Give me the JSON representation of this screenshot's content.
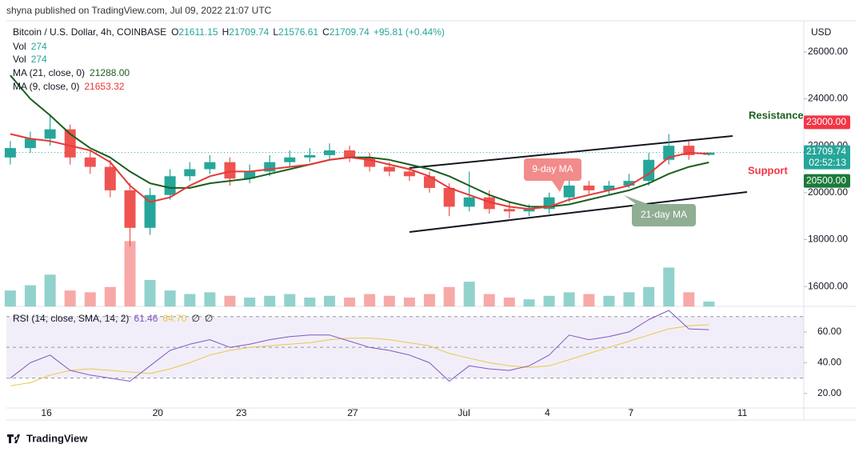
{
  "publisher": "shyna published on TradingView.com, Jul 09, 2022 21:07 UTC",
  "footer": "TradingView",
  "chart_data": {
    "type": "candlestick",
    "symbol": "Bitcoin / U.S. Dollar, 4h, COINBASE",
    "ohlc_prefixes": [
      "O",
      "H",
      "L",
      "C"
    ],
    "change": "+95.81",
    "change_pct": "(+0.44%)",
    "currency": "USD",
    "countdown": "02:52:13",
    "x": [
      -1.3,
      -0.58,
      0.13,
      0.85,
      1.57,
      2.29,
      3.0,
      3.72,
      4.44,
      5.15,
      5.87,
      6.59,
      7.3,
      8.02,
      8.74,
      9.46,
      10.17,
      10.89,
      11.61,
      12.32,
      13.04,
      13.76,
      14.47,
      15.19,
      15.91,
      16.63,
      17.34,
      18.06,
      18.78,
      19.49,
      20.21,
      20.93,
      21.64,
      22.36,
      23.08,
      23.8
    ],
    "xlim": [
      -1.44,
      27.21
    ],
    "xticks": [
      {
        "value": 0,
        "label": "16"
      },
      {
        "value": 4,
        "label": "20"
      },
      {
        "value": 7,
        "label": "23"
      },
      {
        "value": 11,
        "label": "27"
      },
      {
        "value": 15,
        "label": "Jul"
      },
      {
        "value": 18,
        "label": "4"
      },
      {
        "value": 21,
        "label": "7"
      },
      {
        "value": 25,
        "label": "11"
      }
    ],
    "open": [
      21500,
      21900,
      22300,
      22700,
      21500,
      21100,
      20100,
      18500,
      19900,
      20700,
      21000,
      21300,
      20600,
      20900,
      21300,
      21500,
      21600,
      21800,
      21500,
      21100,
      20900,
      20700,
      20200,
      19400,
      19800,
      19300,
      19200,
      19300,
      19800,
      20300,
      20100,
      20300,
      20500,
      21400,
      22000,
      21611.15
    ],
    "high": [
      22200,
      22600,
      23300,
      22900,
      21800,
      21400,
      20400,
      20200,
      21000,
      21300,
      21600,
      21500,
      21200,
      21600,
      21800,
      21900,
      22100,
      22000,
      21700,
      21300,
      21100,
      20900,
      20400,
      20900,
      20100,
      19600,
      19500,
      20000,
      20600,
      20500,
      20500,
      20800,
      21700,
      22500,
      22200,
      21709.74
    ],
    "low": [
      21200,
      21700,
      22000,
      21200,
      20800,
      19800,
      17700,
      18200,
      19700,
      20500,
      20800,
      20300,
      20400,
      20700,
      21100,
      21300,
      21400,
      21300,
      20900,
      20700,
      20500,
      20000,
      19000,
      19200,
      19100,
      18900,
      19000,
      19100,
      19600,
      19900,
      19900,
      20200,
      20300,
      21200,
      21400,
      21576.61
    ],
    "close": [
      21900,
      22300,
      22700,
      21500,
      21100,
      20100,
      18500,
      19900,
      20700,
      21000,
      21300,
      20600,
      20900,
      21300,
      21500,
      21600,
      21800,
      21500,
      21100,
      20900,
      20700,
      20200,
      19400,
      19800,
      19300,
      19200,
      19300,
      19800,
      20300,
      20100,
      20300,
      20500,
      21400,
      22000,
      21600,
      21709.74
    ],
    "up_color": "#26a69a",
    "down_color": "#ef5350",
    "ylim": [
      15150,
      27190
    ],
    "yticks": [
      {
        "value": 16000,
        "label": "16000.00"
      },
      {
        "value": 18000,
        "label": "18000.00"
      },
      {
        "value": 20000,
        "label": "20000.00"
      },
      {
        "value": 22000,
        "label": "22000.00"
      },
      {
        "value": 24000,
        "label": "24000.00"
      },
      {
        "value": 26000,
        "label": "26000.00"
      }
    ],
    "volume": {
      "name": "Vol",
      "vlim": [
        0,
        16000
      ],
      "values": [
        900,
        1200,
        1800,
        900,
        800,
        1100,
        3700,
        1500,
        900,
        700,
        800,
        600,
        500,
        600,
        700,
        500,
        600,
        500,
        700,
        600,
        500,
        700,
        1100,
        1400,
        700,
        500,
        400,
        600,
        800,
        700,
        600,
        800,
        1100,
        2200,
        800,
        274
      ]
    },
    "moving_averages": [
      {
        "name": "MA (21, close, 0)",
        "color": "#1b5e20",
        "value_label": "21288.00",
        "values": [
          25000,
          24000,
          23300,
          22500,
          21900,
          21500,
          20900,
          20400,
          20200,
          20200,
          20400,
          20500,
          20600,
          20800,
          21000,
          21200,
          21400,
          21500,
          21500,
          21400,
          21200,
          21000,
          20700,
          20300,
          19900,
          19600,
          19400,
          19400,
          19500,
          19700,
          19900,
          20100,
          20400,
          20800,
          21100,
          21288
        ]
      },
      {
        "name": "MA (9, close, 0)",
        "color": "#e53935",
        "value_label": "21653.32",
        "values": [
          22500,
          22300,
          22200,
          22000,
          21800,
          21300,
          20300,
          19600,
          19800,
          20300,
          20700,
          20900,
          20900,
          21000,
          21100,
          21200,
          21400,
          21500,
          21400,
          21200,
          21000,
          20700,
          20200,
          19900,
          19600,
          19400,
          19300,
          19400,
          19700,
          19900,
          20100,
          20300,
          20800,
          21500,
          21700,
          21653.32
        ]
      }
    ],
    "levels": [
      {
        "name": "Resistance",
        "value": 23000,
        "label": "23000.00",
        "text_color": "#1b5e20",
        "color": "#f23645"
      },
      {
        "name": "Support",
        "value": 20500,
        "label": "20500.00",
        "text_color": "#f23645",
        "color": "#1b7a3a"
      }
    ],
    "annotations": [
      {
        "text": "9-day MA",
        "color": "#f28b8b"
      },
      {
        "text": "21-day MA",
        "color": "#8fae92"
      }
    ],
    "rsi": {
      "name": "RSI (14, close, SMA, 14, 2)",
      "color": "#7e57c2",
      "values": [
        30,
        40,
        45,
        35,
        32,
        30,
        28,
        38,
        48,
        52,
        55,
        50,
        52,
        55,
        57,
        58,
        58,
        54,
        50,
        48,
        45,
        40,
        28,
        38,
        36,
        35,
        38,
        45,
        58,
        55,
        57,
        60,
        68,
        74,
        62,
        61.46
      ],
      "sma": {
        "color": "#e8c84a",
        "value_label": "64.70",
        "values": [
          25,
          27,
          32,
          35,
          36,
          35,
          34,
          33,
          36,
          40,
          45,
          48,
          50,
          51,
          52,
          53,
          55,
          56,
          56,
          55,
          53,
          51,
          46,
          43,
          40,
          38,
          37,
          38,
          42,
          46,
          50,
          54,
          58,
          62,
          64,
          64.7
        ]
      },
      "na_labels": [
        "∅",
        "∅"
      ],
      "ylim": [
        10.6,
        76.6
      ],
      "yticks": [
        {
          "value": 20,
          "label": "20.00"
        },
        {
          "value": 40,
          "label": "40.00"
        },
        {
          "value": 60,
          "label": "60.00"
        }
      ],
      "band": [
        30,
        70
      ],
      "midline": 50
    }
  }
}
